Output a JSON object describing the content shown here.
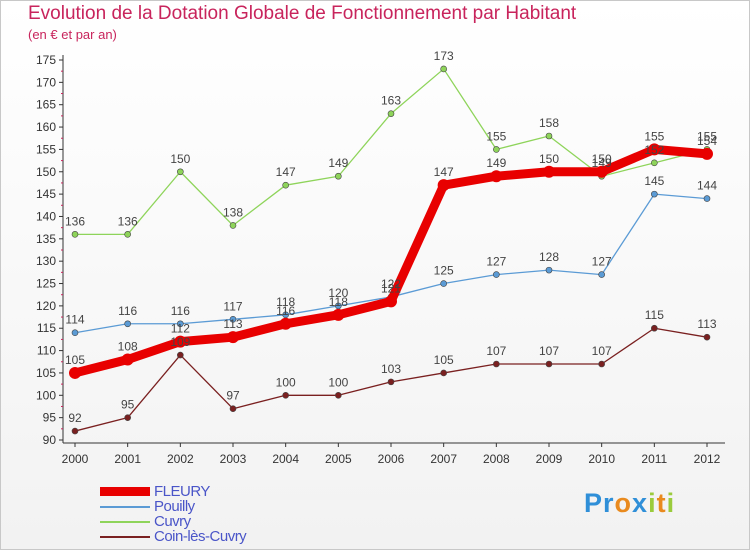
{
  "chart_data": {
    "type": "line",
    "title": "Evolution de la Dotation Globale de Fonctionnement par Habitant",
    "subtitle": "(en € et par an)",
    "xlabel": "",
    "ylabel": "",
    "categories": [
      "2000",
      "2001",
      "2002",
      "2003",
      "2004",
      "2005",
      "2006",
      "2007",
      "2008",
      "2009",
      "2010",
      "2011",
      "2012"
    ],
    "yticks": [
      "90",
      "95",
      "100",
      "105",
      "110",
      "115",
      "120",
      "125",
      "130",
      "135",
      "140",
      "145",
      "150",
      "155",
      "160",
      "165",
      "170",
      "175"
    ],
    "ylim": [
      90,
      175
    ],
    "grid": false,
    "legend_position": "bottom-left",
    "series": [
      {
        "name": "FLEURY",
        "color": "#e80000",
        "thick": true,
        "values": [
          105,
          108,
          112,
          113,
          116,
          118,
          121,
          147,
          149,
          150,
          150,
          155,
          154
        ],
        "labels": [
          "105",
          "108",
          "112",
          "113",
          "116",
          "118",
          "121",
          "147",
          "149",
          "150",
          "150",
          "155",
          "154"
        ]
      },
      {
        "name": "Pouilly",
        "color": "#5b9bd5",
        "thick": false,
        "values": [
          114,
          116,
          116,
          117,
          118,
          120,
          122,
          125,
          127,
          128,
          127,
          145,
          144
        ],
        "labels": [
          "114",
          "116",
          "116",
          "117",
          "118",
          "120",
          "122",
          "125",
          "127",
          "128",
          "127",
          "145",
          "144"
        ]
      },
      {
        "name": "Cuvry",
        "color": "#8ed45a",
        "thick": false,
        "values": [
          136,
          136,
          150,
          138,
          147,
          149,
          163,
          173,
          155,
          158,
          149,
          152,
          155
        ],
        "labels": [
          "136",
          "136",
          "150",
          "138",
          "147",
          "149",
          "163",
          "173",
          "155",
          "158",
          "149",
          "152",
          "155"
        ]
      },
      {
        "name": "Coin-lès-Cuvry",
        "color": "#7a2020",
        "thick": false,
        "values": [
          92,
          95,
          109,
          97,
          100,
          100,
          103,
          105,
          107,
          107,
          107,
          115,
          113
        ],
        "labels": [
          "92",
          "95",
          "109",
          "97",
          "100",
          "100",
          "103",
          "105",
          "107",
          "107",
          "107",
          "115",
          "113"
        ]
      }
    ]
  },
  "logo": {
    "letters": [
      "P",
      "r",
      "o",
      "x",
      "i",
      "t",
      "i"
    ],
    "colors": [
      "#2f8fd8",
      "#2f8fd8",
      "#e98a1e",
      "#2f8fd8",
      "#9acb3c",
      "#e98a1e",
      "#9acb3c"
    ]
  }
}
